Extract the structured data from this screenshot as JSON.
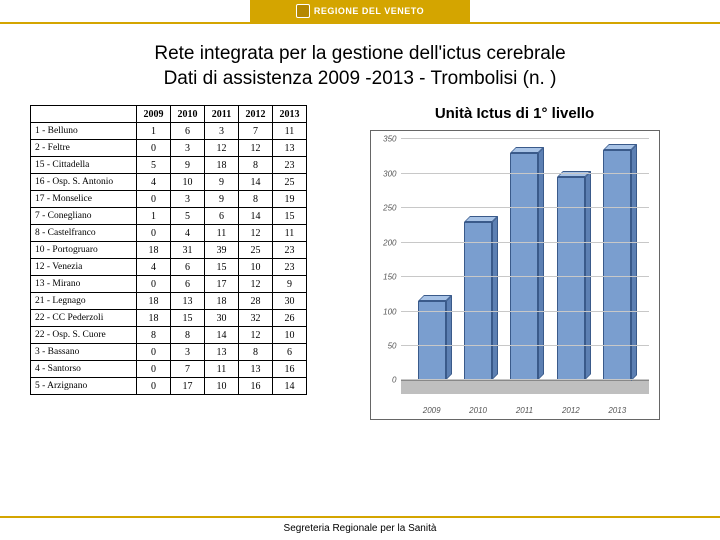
{
  "banner": {
    "text": "REGIONE DEL VENETO"
  },
  "title": {
    "line1": "Rete integrata per la gestione dell'ictus cerebrale",
    "line2": "Dati di assistenza 2009 -2013 - Trombolisi (n. )"
  },
  "table": {
    "columns": [
      "2009",
      "2010",
      "2011",
      "2012",
      "2013"
    ],
    "rows": [
      {
        "label": "1 - Belluno",
        "values": [
          1,
          6,
          3,
          7,
          11
        ]
      },
      {
        "label": "2 - Feltre",
        "values": [
          0,
          3,
          12,
          12,
          13
        ]
      },
      {
        "label": "15 - Cittadella",
        "values": [
          5,
          9,
          18,
          8,
          23
        ]
      },
      {
        "label": "16 - Osp. S. Antonio",
        "values": [
          4,
          10,
          9,
          14,
          25
        ]
      },
      {
        "label": "17 - Monselice",
        "values": [
          0,
          3,
          9,
          8,
          19
        ]
      },
      {
        "label": "7 - Conegliano",
        "values": [
          1,
          5,
          6,
          14,
          15
        ]
      },
      {
        "label": "8 - Castelfranco",
        "values": [
          0,
          4,
          11,
          12,
          11
        ]
      },
      {
        "label": "10 - Portogruaro",
        "values": [
          18,
          31,
          39,
          25,
          23
        ]
      },
      {
        "label": "12 - Venezia",
        "values": [
          4,
          6,
          15,
          10,
          23
        ]
      },
      {
        "label": "13 - Mirano",
        "values": [
          0,
          6,
          17,
          12,
          9
        ]
      },
      {
        "label": "21 - Legnago",
        "values": [
          18,
          13,
          18,
          28,
          30
        ]
      },
      {
        "label": "22 - CC Pederzoli",
        "values": [
          18,
          15,
          30,
          32,
          26
        ]
      },
      {
        "label": "22 - Osp. S. Cuore",
        "values": [
          8,
          8,
          14,
          12,
          10
        ]
      },
      {
        "label": "3 - Bassano",
        "values": [
          0,
          3,
          13,
          8,
          6
        ]
      },
      {
        "label": "4 - Santorso",
        "values": [
          0,
          7,
          11,
          13,
          16
        ]
      },
      {
        "label": "5 - Arzignano",
        "values": [
          0,
          17,
          10,
          16,
          14
        ]
      }
    ]
  },
  "chart": {
    "title": "Unità Ictus di 1° livello",
    "type": "bar",
    "ylim": [
      0,
      350
    ],
    "ytick_step": 50,
    "categories": [
      "2009",
      "2010",
      "2011",
      "2012",
      "2013"
    ],
    "values": [
      115,
      230,
      330,
      295,
      335
    ],
    "bar_colors": {
      "front": "#7a9ecf",
      "top": "#a8c3e6",
      "side": "#5d80b3"
    },
    "grid_color": "#c8c8c8",
    "floor_color": "#bfbfbf",
    "background_color": "#ffffff",
    "label_fontsize": 8
  },
  "footer": {
    "text": "Segreteria Regionale per la Sanità"
  },
  "colors": {
    "accent": "#d4a500"
  }
}
